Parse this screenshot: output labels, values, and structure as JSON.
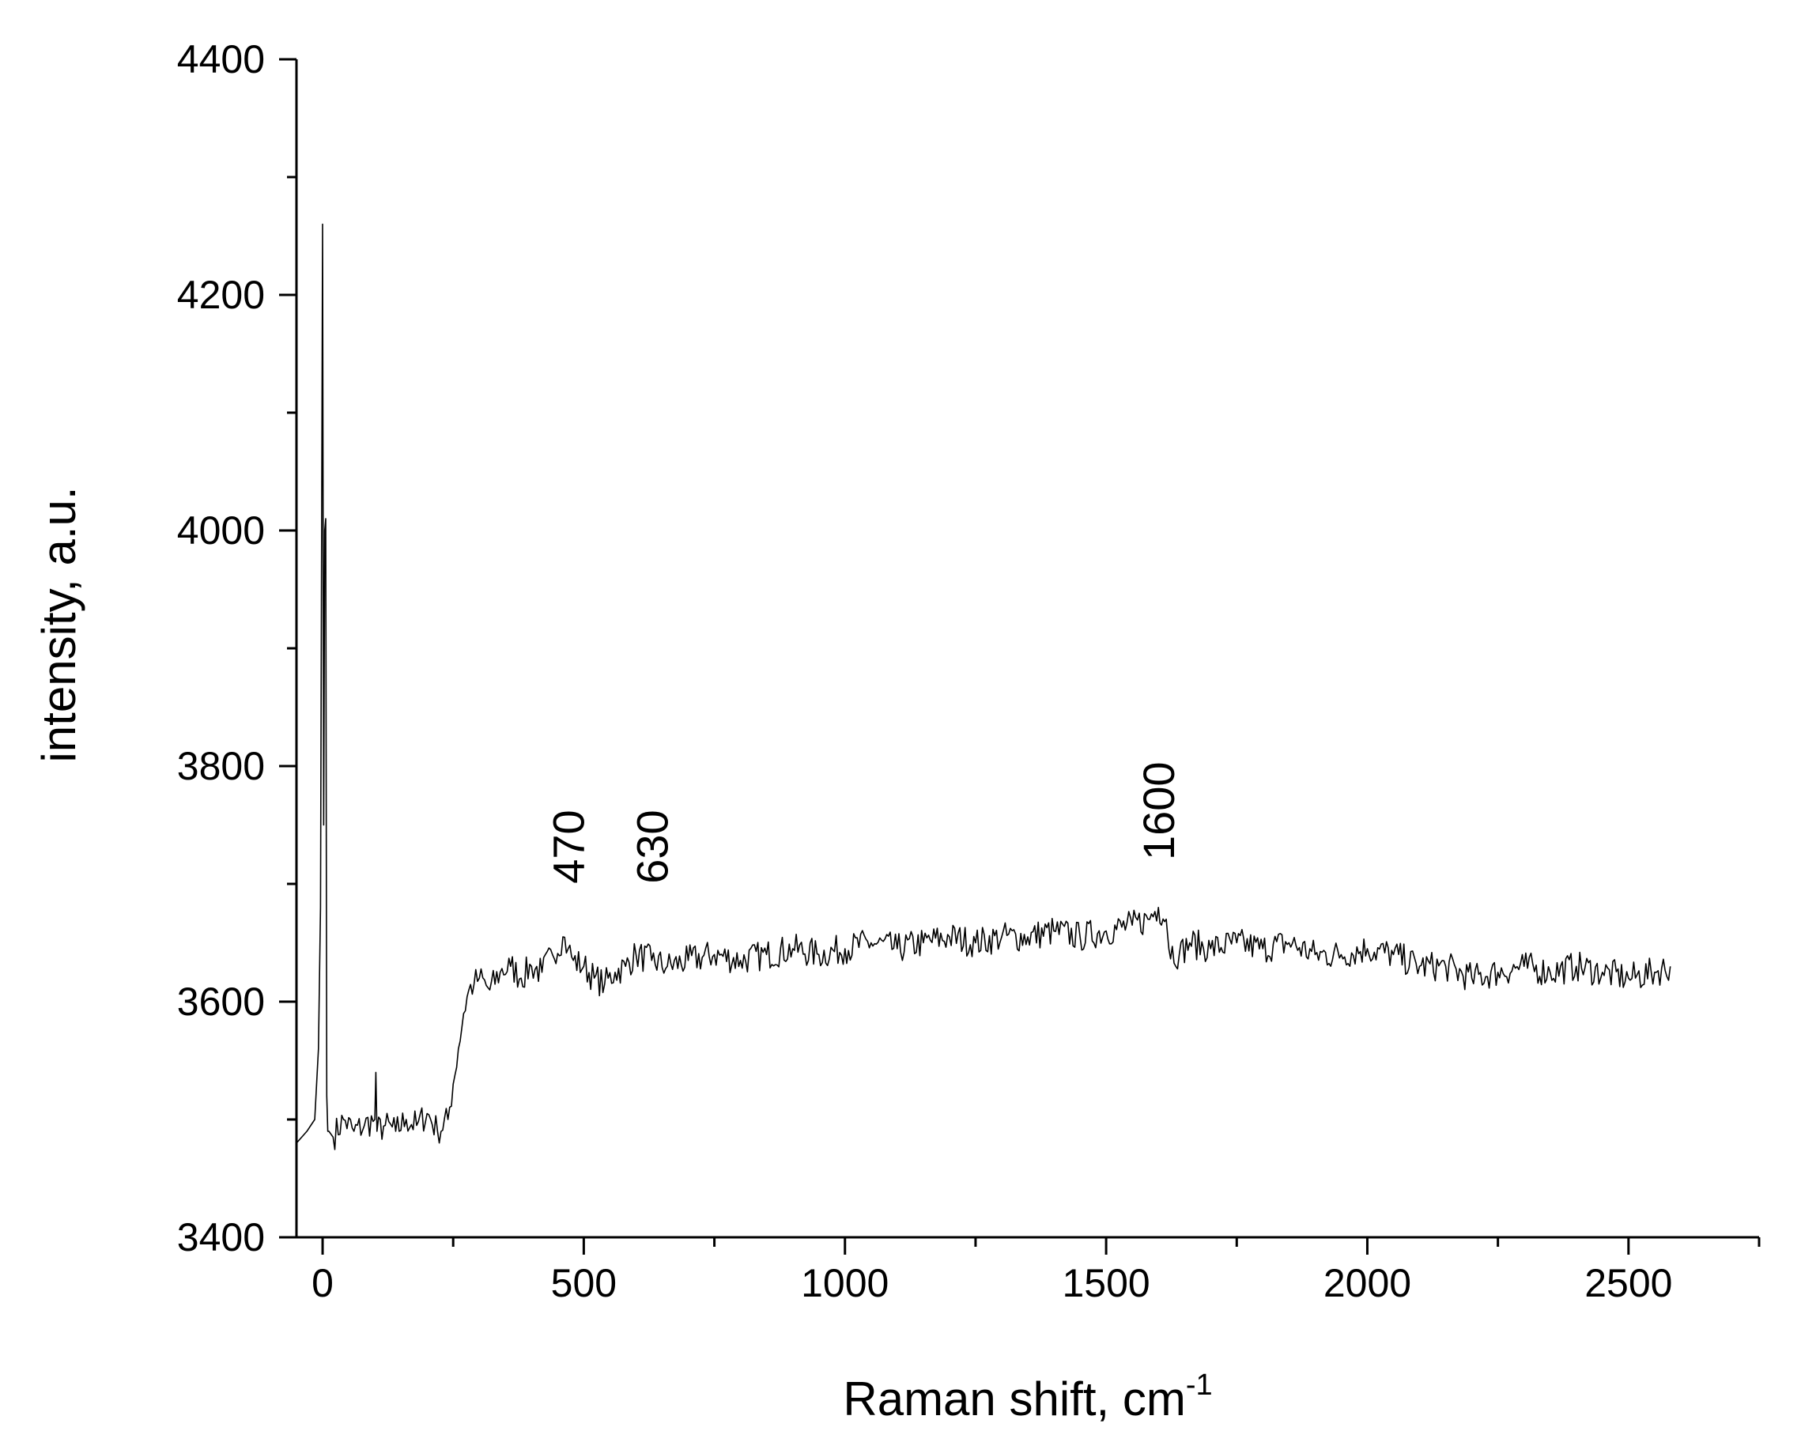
{
  "chart_data": {
    "type": "line",
    "xlabel": "Raman shift, cm",
    "xlabel_superscript": "-1",
    "ylabel": "intensity, a.u.",
    "xlim": [
      -50,
      2750
    ],
    "ylim": [
      3400,
      4400
    ],
    "x_ticks": [
      0,
      500,
      1000,
      1500,
      2000,
      2500
    ],
    "y_ticks": [
      3400,
      3600,
      3800,
      4000,
      4200,
      4400
    ],
    "grid": false,
    "legend": "none",
    "line_color": "#000000",
    "annotations": [
      {
        "text": "470",
        "x": 470,
        "y": 3680
      },
      {
        "text": "630",
        "x": 630,
        "y": 3680
      },
      {
        "text": "1600",
        "x": 1600,
        "y": 3700
      }
    ],
    "series": [
      {
        "x": [
          -50,
          -30,
          -15,
          -8,
          -4,
          0,
          2,
          4,
          6,
          8,
          10,
          12,
          20,
          40,
          60,
          80,
          100,
          102,
          104,
          120,
          140,
          160,
          180,
          200,
          220,
          240,
          250,
          260,
          270,
          280,
          290,
          300,
          320,
          340,
          360,
          380,
          400,
          420,
          440,
          460,
          470,
          480,
          500,
          520,
          540,
          560,
          580,
          600,
          630,
          660,
          700,
          750,
          800,
          850,
          900,
          950,
          1000,
          1050,
          1100,
          1150,
          1200,
          1250,
          1300,
          1350,
          1400,
          1450,
          1500,
          1550,
          1580,
          1600,
          1615,
          1620,
          1640,
          1660,
          1700,
          1750,
          1800,
          1850,
          1900,
          1950,
          2000,
          2050,
          2100,
          2150,
          2200,
          2250,
          2300,
          2350,
          2400,
          2450,
          2500,
          2550,
          2580
        ],
        "y": [
          3480,
          3490,
          3500,
          3560,
          3680,
          4260,
          3750,
          4000,
          4010,
          3520,
          3490,
          3490,
          3485,
          3500,
          3490,
          3495,
          3500,
          3540,
          3490,
          3495,
          3490,
          3500,
          3495,
          3505,
          3490,
          3500,
          3530,
          3560,
          3590,
          3610,
          3615,
          3620,
          3610,
          3625,
          3630,
          3620,
          3630,
          3625,
          3640,
          3655,
          3645,
          3635,
          3630,
          3620,
          3615,
          3625,
          3630,
          3640,
          3635,
          3630,
          3635,
          3640,
          3635,
          3640,
          3645,
          3640,
          3645,
          3650,
          3645,
          3650,
          3655,
          3650,
          3655,
          3655,
          3660,
          3655,
          3660,
          3665,
          3670,
          3680,
          3670,
          3645,
          3640,
          3650,
          3645,
          3650,
          3645,
          3650,
          3640,
          3640,
          3645,
          3640,
          3630,
          3630,
          3620,
          3625,
          3630,
          3625,
          3630,
          3625,
          3620,
          3625,
          3630
        ]
      }
    ]
  }
}
